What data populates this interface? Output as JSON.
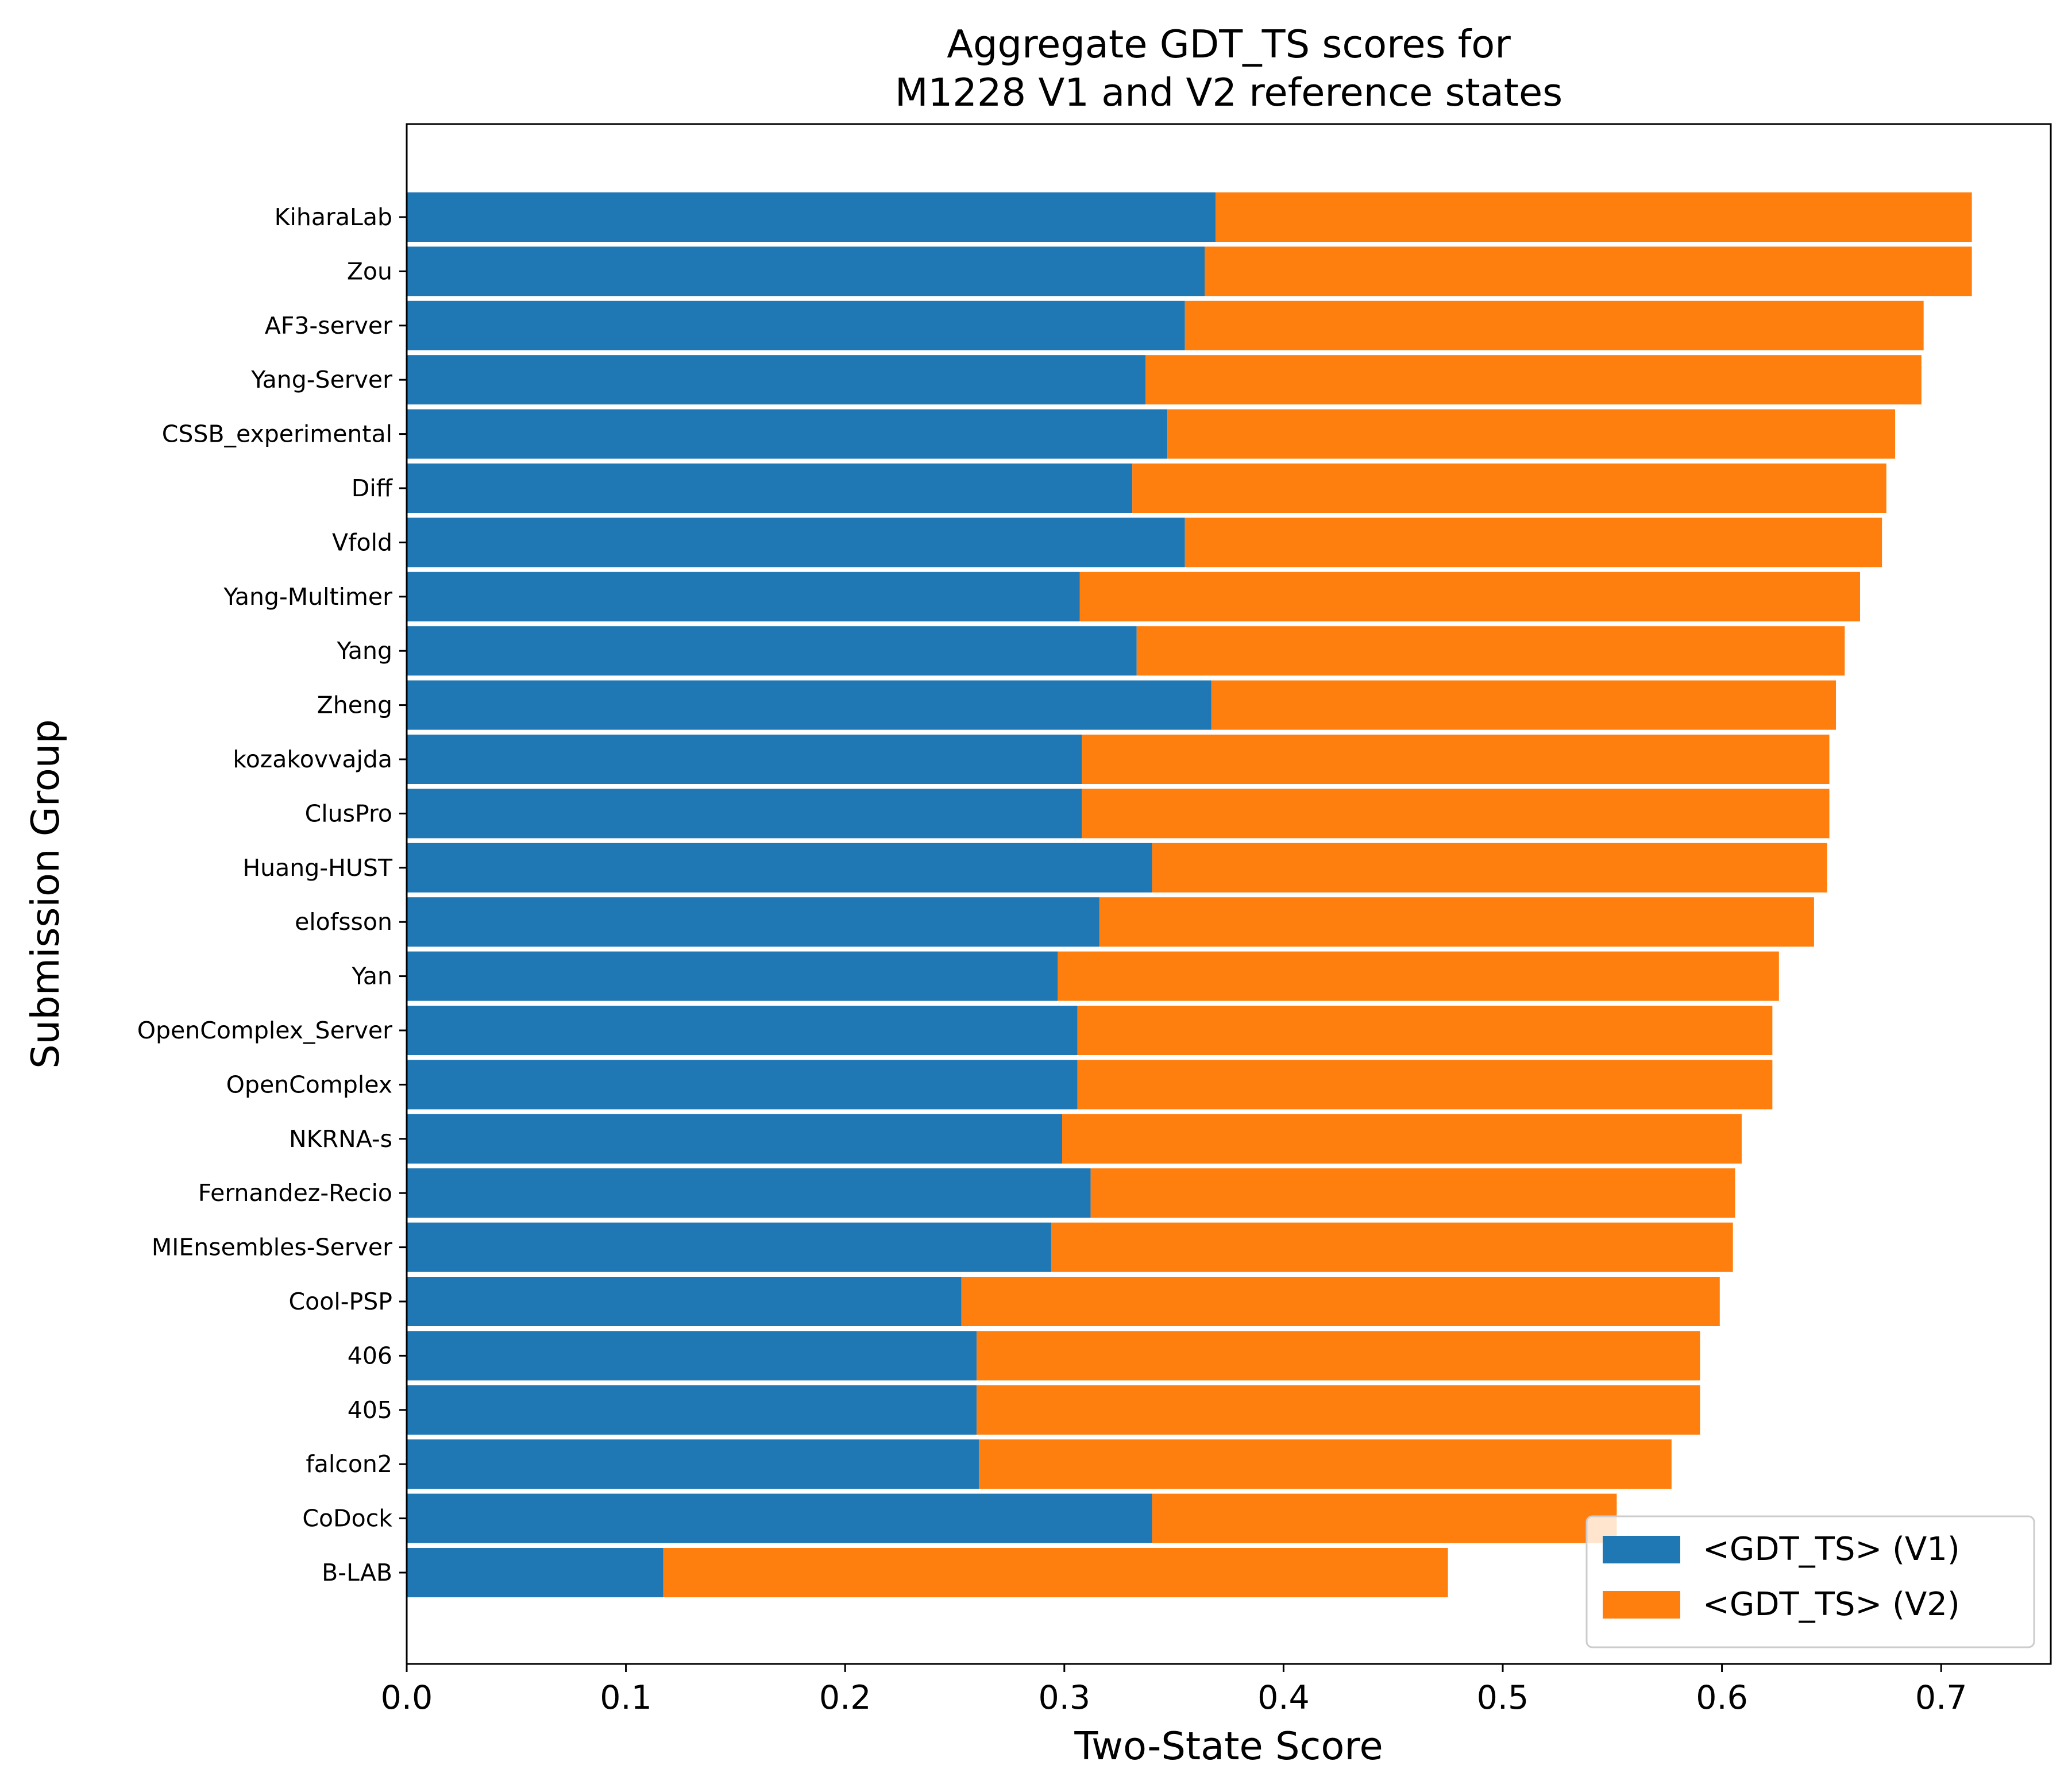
{
  "chart_data": {
    "type": "bar",
    "orientation": "horizontal",
    "stacked": true,
    "title": "Aggregate GDT_TS scores for\nM1228 V1 and V2 reference states",
    "xlabel": "Two-State Score",
    "ylabel": "Submission Group",
    "xlim": [
      0.0,
      0.75
    ],
    "xticks": [
      "0.0",
      "0.1",
      "0.2",
      "0.3",
      "0.4",
      "0.5",
      "0.6",
      "0.7"
    ],
    "grid": false,
    "legend_position": "lower-right",
    "categories": [
      "KiharaLab",
      "Zou",
      "AF3-server",
      "Yang-Server",
      "CSSB_experimental",
      "Diff",
      "Vfold",
      "Yang-Multimer",
      "Yang",
      "Zheng",
      "kozakovvajda",
      "ClusPro",
      "Huang-HUST",
      "elofsson",
      "Yan",
      "OpenComplex_Server",
      "OpenComplex",
      "NKRNA-s",
      "Fernandez-Recio",
      "MIEnsembles-Server",
      "Cool-PSP",
      "406",
      "405",
      "falcon2",
      "CoDock",
      "B-LAB"
    ],
    "series": [
      {
        "name": "<GDT_TS> (V1)",
        "color": "#1f77b4",
        "values": [
          0.369,
          0.364,
          0.355,
          0.337,
          0.347,
          0.331,
          0.355,
          0.307,
          0.333,
          0.367,
          0.308,
          0.308,
          0.34,
          0.316,
          0.297,
          0.306,
          0.306,
          0.299,
          0.312,
          0.294,
          0.253,
          0.26,
          0.26,
          0.261,
          0.34,
          0.117
        ]
      },
      {
        "name": "<GDT_TS> (V2)",
        "color": "#ff7f0e",
        "values": [
          0.345,
          0.35,
          0.337,
          0.354,
          0.332,
          0.344,
          0.318,
          0.356,
          0.323,
          0.285,
          0.341,
          0.341,
          0.308,
          0.326,
          0.329,
          0.317,
          0.317,
          0.31,
          0.294,
          0.311,
          0.346,
          0.33,
          0.33,
          0.316,
          0.212,
          0.358
        ]
      }
    ]
  }
}
